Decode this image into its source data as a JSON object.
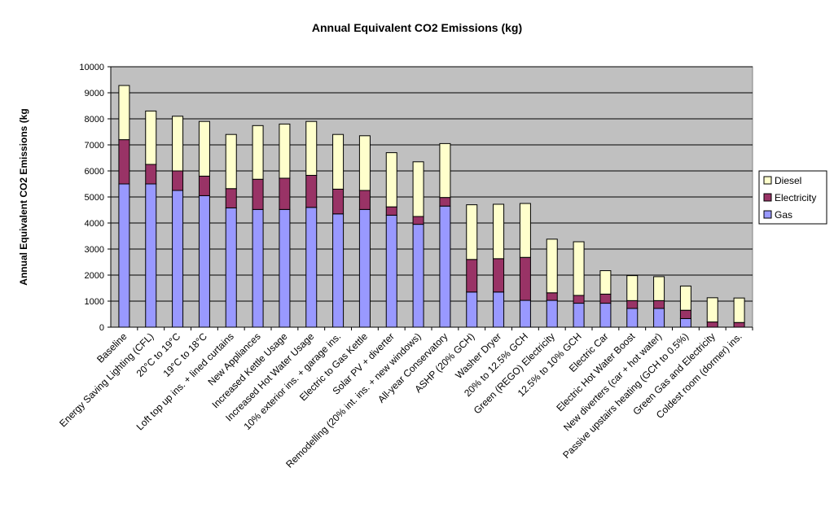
{
  "chart_data": {
    "type": "bar",
    "stacked": true,
    "title": "Annual Equivalent CO2 Emissions (kg)",
    "xlabel": "",
    "ylabel": "Annual Equivalent CO2 Emissions (kg",
    "ylim": [
      0,
      10000
    ],
    "yticks": [
      0,
      1000,
      2000,
      3000,
      4000,
      5000,
      6000,
      7000,
      8000,
      9000,
      10000
    ],
    "grid": true,
    "legend_position": "right",
    "categories": [
      "Baseline",
      "Energy Saving Lighting (CFL)",
      "20°C to 19°C",
      "19°C to 18°C",
      "Loft top up ins. + lined curtains",
      "New Appliances",
      "Increased Kettle Usage",
      "Increased Hot Water Usage",
      "10% exterior ins. + garage ins.",
      "Electric to Gas Kettle",
      "Solar PV + diverter",
      "Remodelling (20% int. ins. + new windows)",
      "All-year Conservatory",
      "ASHP (20% GCH)",
      "Washer Dryer",
      "20% to 12.5% GCH",
      "Green (REGO) Electricity",
      "12.5% to 10% GCH",
      "Electric Car",
      "Electric Hot Water Boost",
      "New diverters (car + hot water)",
      "Passive upstairs heating (GCH to 0.5%)",
      "Green Gas and Electricity",
      "Coldest room (dormer) ins."
    ],
    "series": [
      {
        "name": "Gas",
        "color": "#9999ff",
        "values": [
          5500,
          5500,
          5250,
          5050,
          4580,
          4520,
          4520,
          4600,
          4350,
          4520,
          4300,
          3950,
          4650,
          1350,
          1350,
          1030,
          1030,
          920,
          920,
          720,
          720,
          330,
          0,
          0
        ]
      },
      {
        "name": "Electricity",
        "color": "#993366",
        "values": [
          1700,
          750,
          750,
          750,
          740,
          1160,
          1200,
          1230,
          950,
          730,
          320,
          300,
          330,
          1250,
          1280,
          1650,
          290,
          300,
          350,
          300,
          300,
          320,
          200,
          180
        ]
      },
      {
        "name": "Diesel",
        "color": "#ffffcc",
        "values": [
          2080,
          2050,
          2100,
          2100,
          2080,
          2060,
          2080,
          2070,
          2100,
          2100,
          2080,
          2100,
          2070,
          2100,
          2090,
          2070,
          2060,
          2060,
          900,
          960,
          920,
          930,
          930,
          940
        ]
      }
    ],
    "legend_order": [
      "Diesel",
      "Electricity",
      "Gas"
    ]
  }
}
